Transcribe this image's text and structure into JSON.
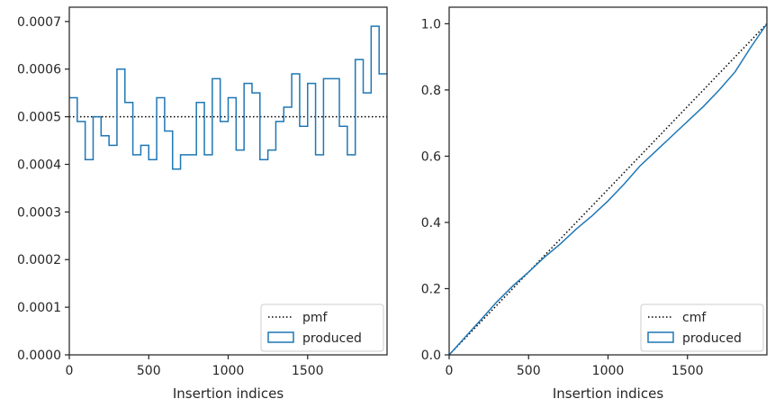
{
  "chart_data": [
    {
      "type": "step",
      "xlabel": "Insertion indices",
      "ylabel": "",
      "xlim": [
        0,
        2000
      ],
      "ylim": [
        0,
        0.00073
      ],
      "xticks": [
        0,
        500,
        1000,
        1500
      ],
      "yticks": [
        0,
        0.0001,
        0.0002,
        0.0003,
        0.0004,
        0.0005,
        0.0006,
        0.0007
      ],
      "ytick_labels": [
        "0.0000",
        "0.0001",
        "0.0002",
        "0.0003",
        "0.0004",
        "0.0005",
        "0.0006",
        "0.0007"
      ],
      "grid": false,
      "legend_position": "lower-right",
      "bin_width": 50,
      "series": [
        {
          "name": "pmf",
          "style": "dotted",
          "color": "#000000",
          "x": [
            0,
            2000
          ],
          "y": [
            0.0005,
            0.0005
          ]
        },
        {
          "name": "produced",
          "style": "step-histogram",
          "color": "#1f77b4",
          "bin_edges": [
            0,
            50,
            100,
            150,
            200,
            250,
            300,
            350,
            400,
            450,
            500,
            550,
            600,
            650,
            700,
            750,
            800,
            850,
            900,
            950,
            1000,
            1050,
            1100,
            1150,
            1200,
            1250,
            1300,
            1350,
            1400,
            1450,
            1500,
            1550,
            1600,
            1650,
            1700,
            1750,
            1800,
            1850,
            1900,
            1950,
            2000
          ],
          "values": [
            0.00054,
            0.00049,
            0.00041,
            0.0005,
            0.00046,
            0.00044,
            0.0006,
            0.00053,
            0.00042,
            0.00044,
            0.00041,
            0.00054,
            0.00047,
            0.00039,
            0.00042,
            0.00042,
            0.00053,
            0.00042,
            0.00058,
            0.00049,
            0.00054,
            0.00043,
            0.00057,
            0.00055,
            0.00041,
            0.00043,
            0.00049,
            0.00052,
            0.00059,
            0.00048,
            0.00057,
            0.00042,
            0.00058,
            0.00058,
            0.00048,
            0.00042,
            0.00062,
            0.00055,
            0.00069,
            0.00059
          ]
        }
      ]
    },
    {
      "type": "line",
      "xlabel": "Insertion indices",
      "ylabel": "",
      "xlim": [
        0,
        2000
      ],
      "ylim": [
        0,
        1.05
      ],
      "xticks": [
        0,
        500,
        1000,
        1500
      ],
      "yticks": [
        0,
        0.2,
        0.4,
        0.6,
        0.8,
        1.0
      ],
      "ytick_labels": [
        "0.0",
        "0.2",
        "0.4",
        "0.6",
        "0.8",
        "1.0"
      ],
      "grid": false,
      "legend_position": "lower-right",
      "series": [
        {
          "name": "cmf",
          "style": "dotted",
          "color": "#000000",
          "x": [
            0,
            2000
          ],
          "y": [
            0,
            1.0
          ]
        },
        {
          "name": "produced",
          "style": "solid",
          "color": "#1f77b4",
          "x": [
            0,
            100,
            200,
            300,
            400,
            500,
            600,
            700,
            800,
            900,
            1000,
            1100,
            1200,
            1300,
            1400,
            1500,
            1600,
            1700,
            1800,
            1900,
            2000
          ],
          "y": [
            0,
            0.053,
            0.106,
            0.16,
            0.208,
            0.25,
            0.295,
            0.335,
            0.38,
            0.42,
            0.465,
            0.515,
            0.57,
            0.615,
            0.66,
            0.705,
            0.75,
            0.8,
            0.855,
            0.93,
            1.0
          ]
        }
      ]
    }
  ]
}
